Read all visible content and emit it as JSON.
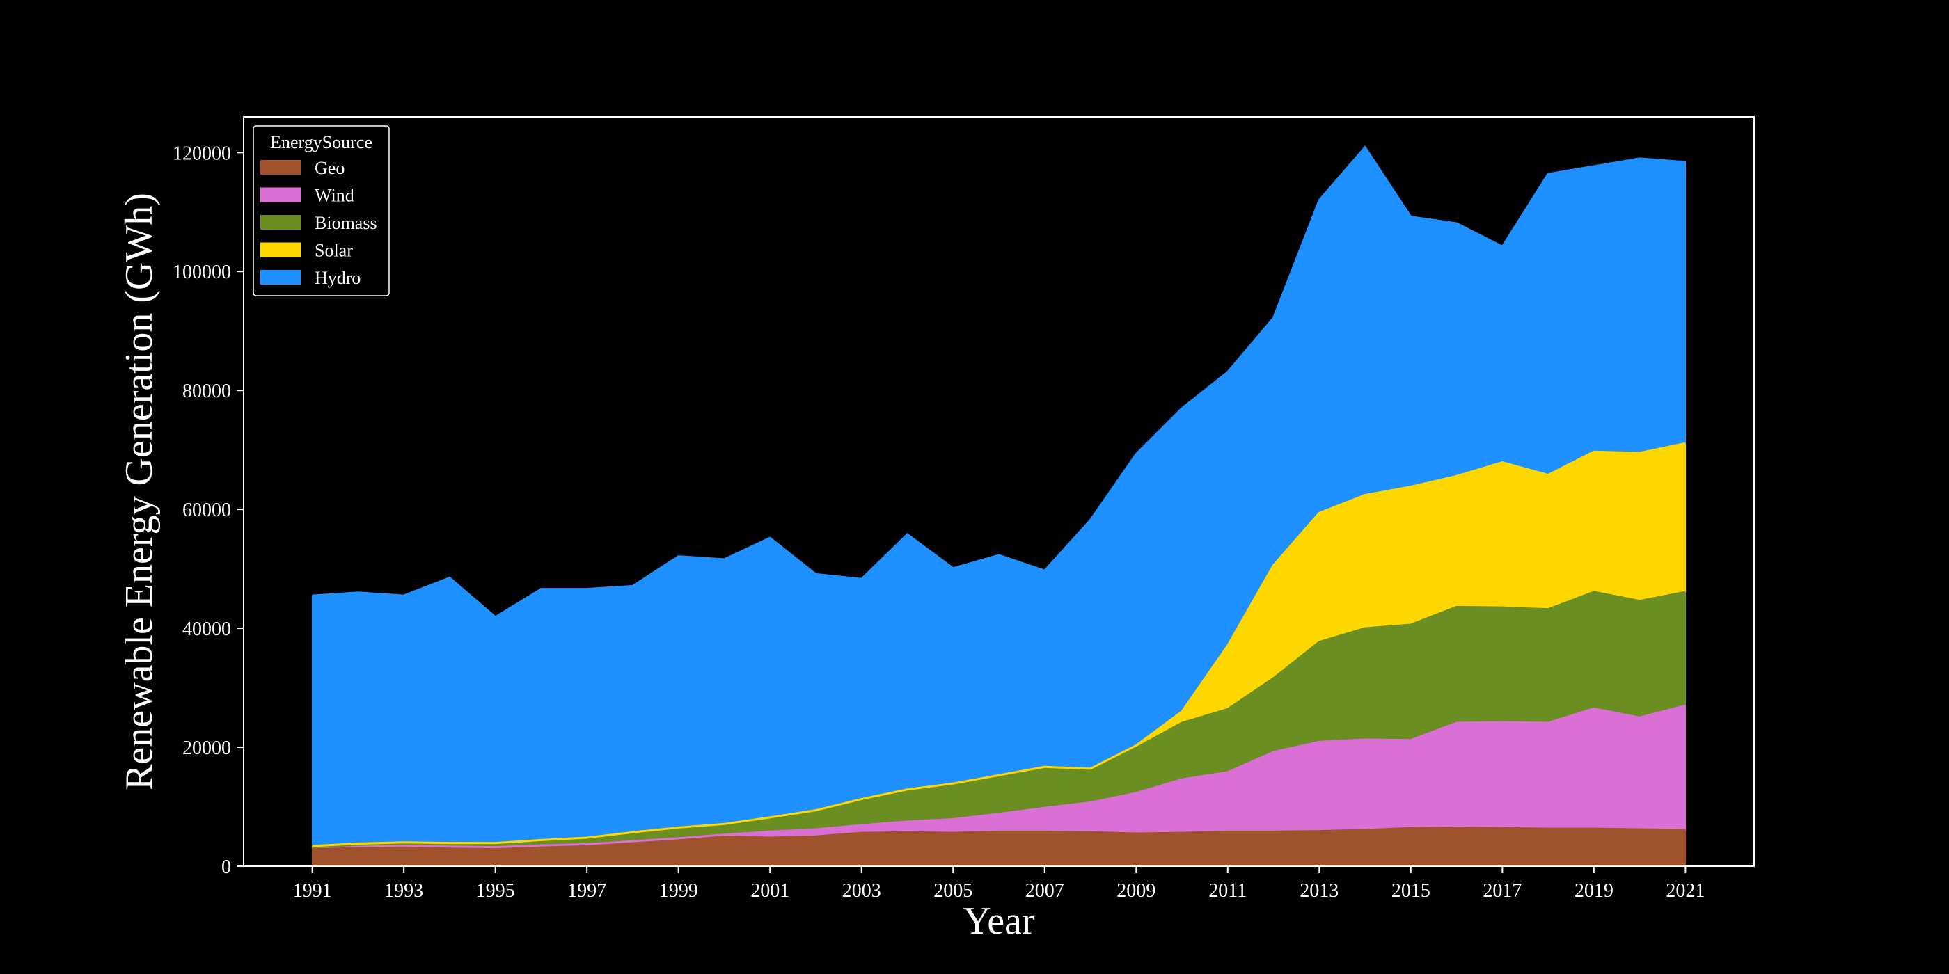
{
  "chart_data": {
    "type": "area",
    "stacked": true,
    "title": "",
    "xlabel": "Year",
    "ylabel": "Renewable Energy Generation (GWh)",
    "xlim": [
      1989.5,
      2022.5
    ],
    "ylim": [
      0,
      126000
    ],
    "x_ticks": [
      1991,
      1993,
      1995,
      1997,
      1999,
      2001,
      2003,
      2005,
      2007,
      2009,
      2011,
      2013,
      2015,
      2017,
      2019,
      2021
    ],
    "y_ticks": [
      0,
      20000,
      40000,
      60000,
      80000,
      100000,
      120000
    ],
    "grid": false,
    "legend": {
      "title": "EnergySource",
      "placement": "top-left"
    },
    "x": [
      1991,
      1992,
      1993,
      1994,
      1995,
      1996,
      1997,
      1998,
      1999,
      2000,
      2001,
      2002,
      2003,
      2004,
      2005,
      2006,
      2007,
      2008,
      2009,
      2010,
      2011,
      2012,
      2013,
      2014,
      2015,
      2016,
      2017,
      2018,
      2019,
      2020,
      2021
    ],
    "series": [
      {
        "name": "Geo",
        "color": "#a0522d",
        "values": [
          3200,
          3400,
          3500,
          3300,
          3200,
          3500,
          3700,
          4200,
          4600,
          5000,
          4800,
          5000,
          5600,
          5700,
          5600,
          5800,
          5800,
          5700,
          5500,
          5600,
          5800,
          5800,
          5900,
          6100,
          6400,
          6500,
          6400,
          6300,
          6300,
          6200,
          6100
        ]
      },
      {
        "name": "Wind",
        "color": "#da70d6",
        "values": [
          0,
          0,
          0,
          0,
          0,
          0,
          0,
          0,
          100,
          300,
          1000,
          1200,
          1300,
          1800,
          2300,
          3000,
          4000,
          5000,
          6800,
          9000,
          10000,
          13400,
          15000,
          15200,
          14800,
          17600,
          17800,
          17800,
          20200,
          18800,
          20900
        ]
      },
      {
        "name": "Biomass",
        "color": "#6b8e23",
        "values": [
          0,
          200,
          300,
          400,
          500,
          700,
          900,
          1300,
          1600,
          1600,
          2200,
          3000,
          4200,
          5200,
          5800,
          6300,
          6700,
          5500,
          7600,
          9500,
          10600,
          12400,
          16800,
          18700,
          19400,
          19500,
          19300,
          19100,
          19600,
          19600,
          19100
        ]
      },
      {
        "name": "Solar",
        "color": "#ffd700",
        "values": [
          200,
          200,
          200,
          200,
          200,
          200,
          200,
          200,
          200,
          200,
          200,
          200,
          200,
          200,
          200,
          200,
          200,
          200,
          400,
          1900,
          10700,
          19000,
          21700,
          22400,
          23200,
          22000,
          24400,
          22600,
          23600,
          24900,
          25000
        ]
      },
      {
        "name": "Hydro",
        "color": "#1e90ff",
        "values": [
          42100,
          42200,
          41500,
          44600,
          38000,
          42200,
          41800,
          41400,
          45600,
          44500,
          47000,
          39700,
          37000,
          42900,
          36200,
          37000,
          33000,
          41800,
          49000,
          51000,
          46000,
          41600,
          52600,
          58500,
          45400,
          42500,
          36300,
          50600,
          48000,
          49500,
          47300
        ]
      }
    ]
  }
}
